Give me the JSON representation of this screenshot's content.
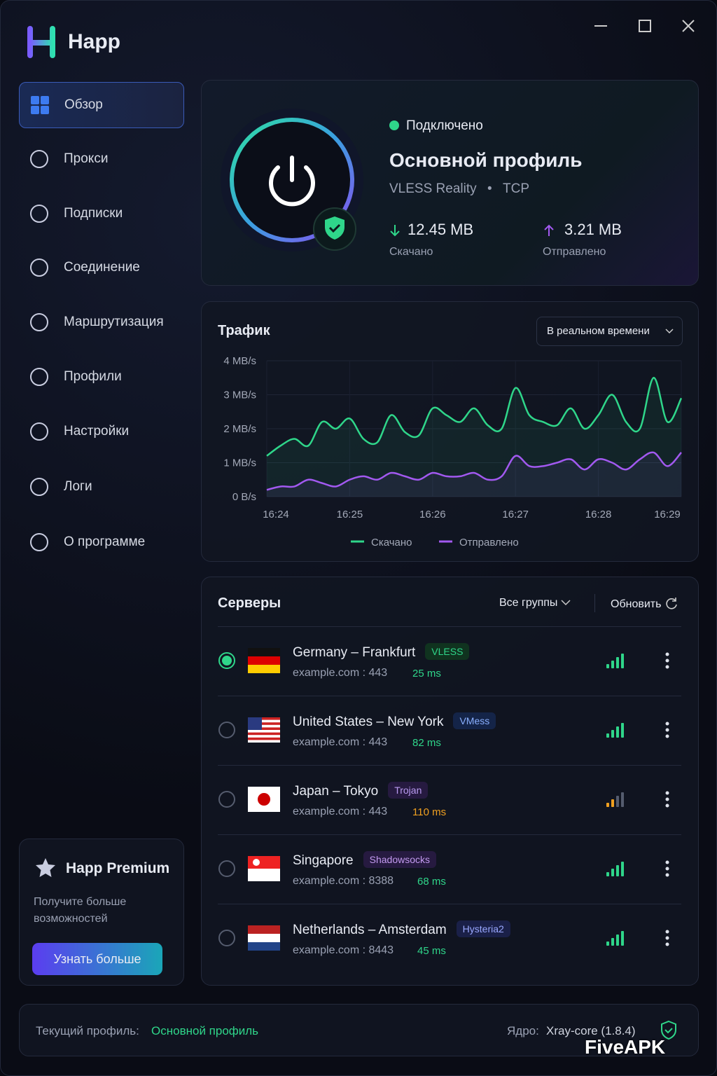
{
  "app": {
    "name": "Happ"
  },
  "nav": [
    "Обзор",
    "Прокси",
    "Подписки",
    "Соединение",
    "Маршрутизация",
    "Профили",
    "Настройки",
    "Логи",
    "О программе"
  ],
  "premium": {
    "title": "Happ Premium",
    "text": "Получите больше возможностей",
    "button": "Узнать больше"
  },
  "connection": {
    "status": "Подключено",
    "profile": "Основной профиль",
    "protocol": "VLESS Reality",
    "transport": "TCP",
    "download": {
      "value": "12.45 MB",
      "label": "Скачано"
    },
    "upload": {
      "value": "3.21 MB",
      "label": "Отправлено"
    }
  },
  "traffic": {
    "title": "Трафик",
    "range": "В реальном времени",
    "chart": {
      "type": "line",
      "categories": [
        "16:24",
        null,
        null,
        null,
        null,
        null,
        "16:25",
        null,
        null,
        null,
        null,
        null,
        "16:26",
        null,
        null,
        null,
        null,
        null,
        "16:27",
        null,
        null,
        null,
        null,
        null,
        "16:28",
        null,
        null,
        null,
        null,
        null,
        "16:29"
      ],
      "series": [
        {
          "name": "Скачано",
          "color": "#2fd68a",
          "values": [
            1.2,
            1.5,
            1.7,
            1.5,
            2.2,
            2.0,
            2.3,
            1.7,
            1.6,
            2.4,
            1.9,
            1.8,
            2.6,
            2.4,
            2.2,
            2.6,
            2.1,
            2.0,
            3.2,
            2.4,
            2.2,
            2.1,
            2.6,
            2.0,
            2.4,
            3.0,
            2.2,
            2.0,
            3.5,
            2.2,
            2.9
          ]
        },
        {
          "name": "Отправлено",
          "color": "#a259f0",
          "values": [
            0.2,
            0.3,
            0.3,
            0.5,
            0.4,
            0.3,
            0.5,
            0.6,
            0.5,
            0.7,
            0.6,
            0.5,
            0.7,
            0.6,
            0.6,
            0.7,
            0.5,
            0.6,
            1.2,
            0.9,
            0.9,
            1.0,
            1.1,
            0.8,
            1.1,
            1.0,
            0.8,
            1.1,
            1.3,
            0.9,
            1.3
          ]
        }
      ],
      "ylim": [
        0,
        4
      ],
      "yticks": [
        {
          "value": 0,
          "label": "0 B/s"
        },
        {
          "value": 1,
          "label": "1 MB/s"
        },
        {
          "value": 2,
          "label": "2 MB/s"
        },
        {
          "value": 3,
          "label": "3 MB/s"
        },
        {
          "value": 4,
          "label": "4 MB/s"
        }
      ],
      "grid": true
    }
  },
  "servers": {
    "title": "Серверы",
    "filter": "Все группы",
    "refresh": "Обновить",
    "items": [
      {
        "name": "Germany – Frankfurt",
        "protocol": "VLESS",
        "address": "example.com : 443",
        "ping": "25 ms",
        "color": "#2fd68a"
      },
      {
        "name": "United States – New York",
        "protocol": "VMess",
        "address": "example.com : 443",
        "ping": "82 ms",
        "color": "#2fd68a"
      },
      {
        "name": "Japan – Tokyo",
        "protocol": "Trojan",
        "address": "example.com : 443",
        "ping": "110 ms",
        "color": "#f0a020"
      },
      {
        "name": "Singapore",
        "protocol": "Shadowsocks",
        "address": "example.com : 8388",
        "ping": "68 ms",
        "color": "#2fd68a"
      },
      {
        "name": "Netherlands – Amsterdam",
        "protocol": "Hysteria2",
        "address": "example.com : 8443",
        "ping": "45 ms",
        "color": "#2fd68a"
      }
    ]
  },
  "footer": {
    "profile_label": "Текущий профиль:",
    "profile": "Основной профиль",
    "core_label": "Ядро:",
    "core": "Xray-core (1.8.4)"
  },
  "watermark": "FiveAPK"
}
